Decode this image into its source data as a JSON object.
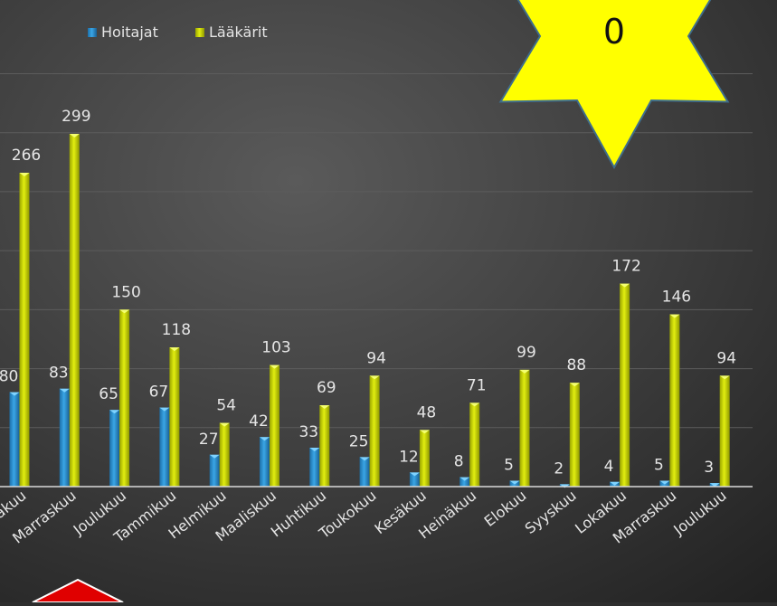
{
  "badge": {
    "value": "0",
    "color": "#ffff00"
  },
  "chart_data": {
    "type": "bar",
    "categories": [
      "Lokakuu",
      "Marraskuu",
      "Joulukuu",
      "Tammikuu",
      "Helmikuu",
      "Maaliskuu",
      "Huhtikuu",
      "Toukokuu",
      "Kesäkuu",
      "Heinäkuu",
      "Elokuu",
      "Syyskuu",
      "Lokakuu",
      "Marraskuu",
      "Joulukuu"
    ],
    "category_labels": [
      "akuu",
      "Marraskuu",
      "Joulukuu",
      "Tammikuu",
      "Helmikuu",
      "Maaliskuu",
      "Huhtikuu",
      "Toukokuu",
      "Kesäkuu",
      "Heinäkuu",
      "Elokuu",
      "Syyskuu",
      "Lokakuu",
      "Marraskuu",
      "Joulukuu"
    ],
    "series": [
      {
        "name": "Hoitajat",
        "values": [
          80,
          83,
          65,
          67,
          27,
          42,
          33,
          25,
          12,
          8,
          5,
          2,
          4,
          5,
          3
        ],
        "color": "#2f8fcf"
      },
      {
        "name": "Lääkärit",
        "values": [
          266,
          299,
          150,
          118,
          54,
          103,
          69,
          94,
          48,
          71,
          99,
          88,
          172,
          146,
          94
        ],
        "color": "#c8d400"
      }
    ],
    "ylim": [
      0,
      350
    ],
    "grid": true,
    "legend": "top"
  }
}
